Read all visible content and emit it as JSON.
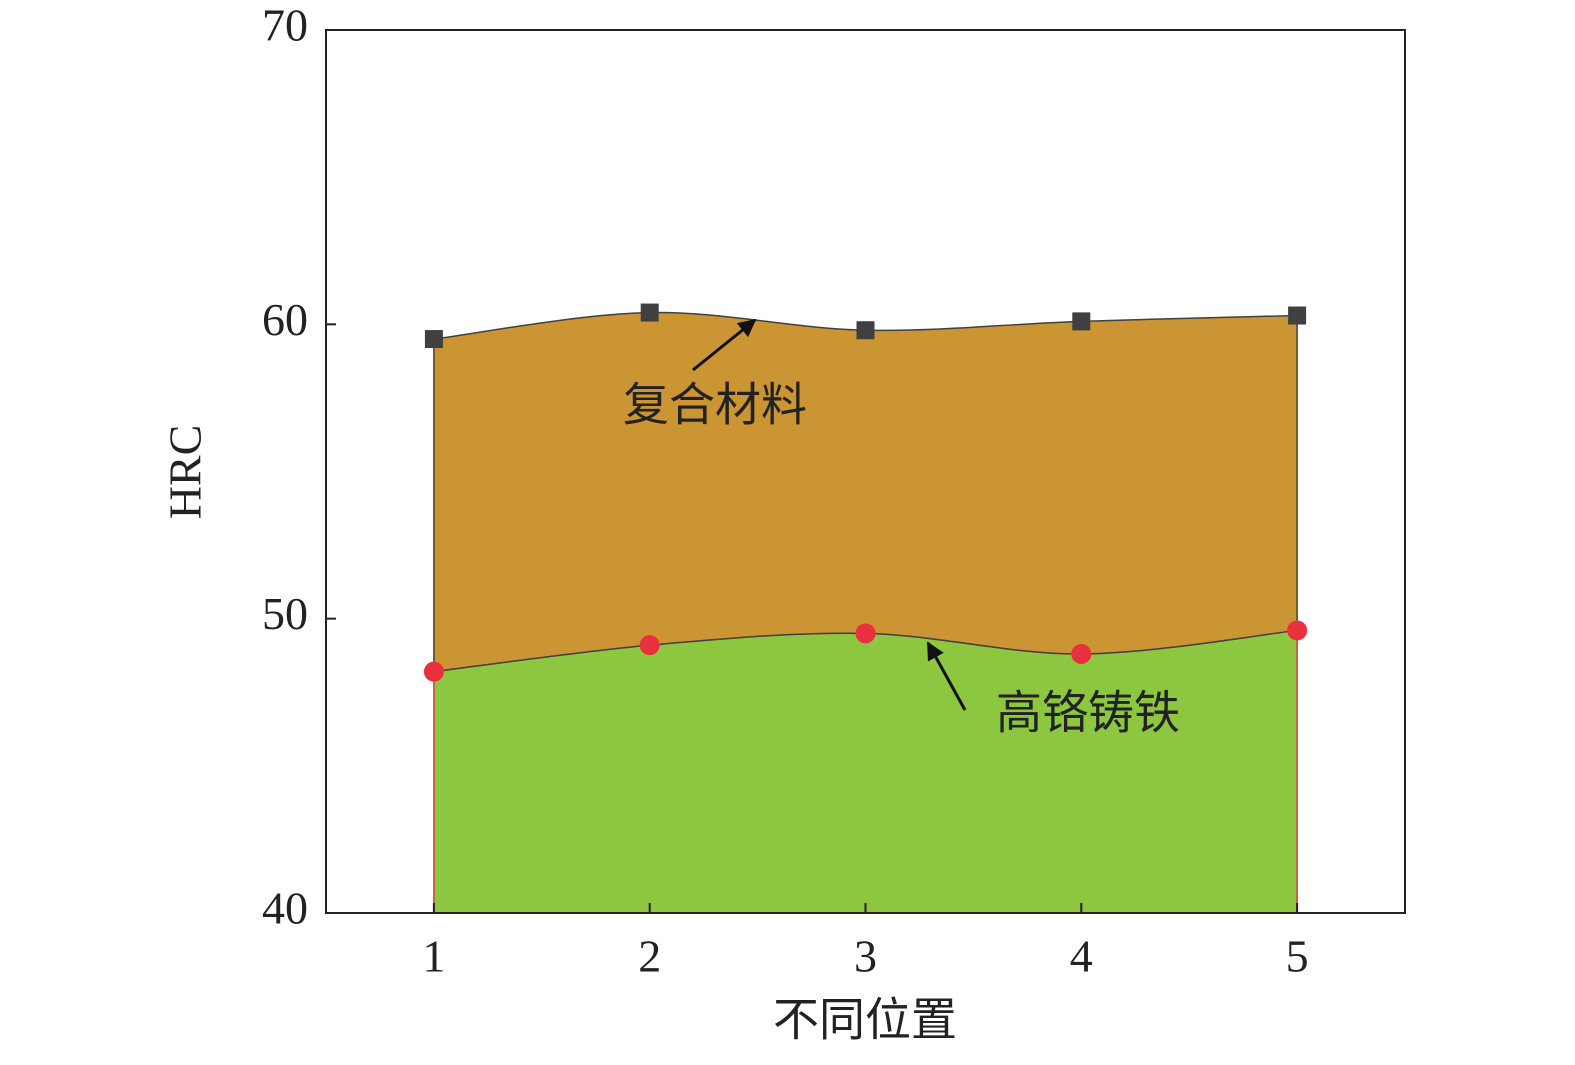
{
  "chart_data": {
    "type": "area",
    "x_label": "不同位置",
    "y_label": "HRC",
    "x": [
      1,
      2,
      3,
      4,
      5
    ],
    "series": [
      {
        "name": "复合材料",
        "color": "#cc9533",
        "marker": "square",
        "marker_color": "#404040",
        "values": [
          59.5,
          60.4,
          59.8,
          60.1,
          60.3
        ]
      },
      {
        "name": "高铬铸铁",
        "color": "#8dc63f",
        "marker": "circle",
        "marker_color": "#e8303f",
        "values": [
          48.2,
          49.1,
          49.5,
          48.8,
          49.6
        ]
      }
    ],
    "xlim": [
      0.5,
      5.5
    ],
    "xticks": [
      1,
      2,
      3,
      4,
      5
    ],
    "ylim": [
      40,
      70
    ],
    "yticks": [
      40,
      50,
      60,
      70
    ]
  }
}
